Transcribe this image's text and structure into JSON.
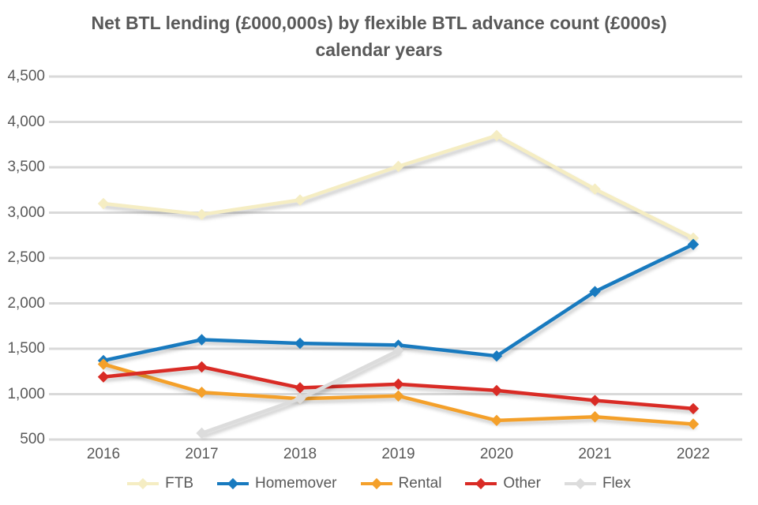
{
  "chart_data": {
    "type": "line",
    "title_line1": "Net BTL lending (£000,000s) by flexible BTL advance count (£000s)",
    "title_line2": "calendar years",
    "categories": [
      "2016",
      "2017",
      "2018",
      "2019",
      "2020",
      "2021",
      "2022"
    ],
    "xlabel": "",
    "ylabel": "",
    "ylim": [
      500,
      4500
    ],
    "y_step": 500,
    "y_tick_labels_top_to_bottom": [
      "4,500",
      "4,000",
      "3,500",
      "3,000",
      "2,500",
      "2,000",
      "1,500",
      "1,000",
      "500"
    ],
    "grid": true,
    "legend_position": "bottom",
    "series": [
      {
        "name": "FTB",
        "color": "#F5EDC3",
        "marker": "diamond",
        "values": [
          3100,
          2980,
          3140,
          3510,
          3850,
          3260,
          2720
        ]
      },
      {
        "name": "Homemover",
        "color": "#187ABF",
        "marker": "diamond",
        "values": [
          1370,
          1600,
          1560,
          1540,
          1420,
          2130,
          2650
        ]
      },
      {
        "name": "Rental",
        "color": "#F4A02A",
        "marker": "diamond",
        "values": [
          1330,
          1020,
          950,
          980,
          710,
          750,
          670
        ]
      },
      {
        "name": "Other",
        "color": "#D92B25",
        "marker": "diamond",
        "values": [
          1190,
          1300,
          1070,
          1110,
          1040,
          930,
          840
        ]
      },
      {
        "name": "Flex",
        "color": "#DCDCDC",
        "marker": "diamond",
        "values": [
          null,
          570,
          950,
          1480,
          null,
          null,
          null
        ]
      }
    ],
    "colors": {
      "text": "#595959",
      "gridline": "#D9D9D9",
      "background": "#FFFFFF"
    }
  }
}
